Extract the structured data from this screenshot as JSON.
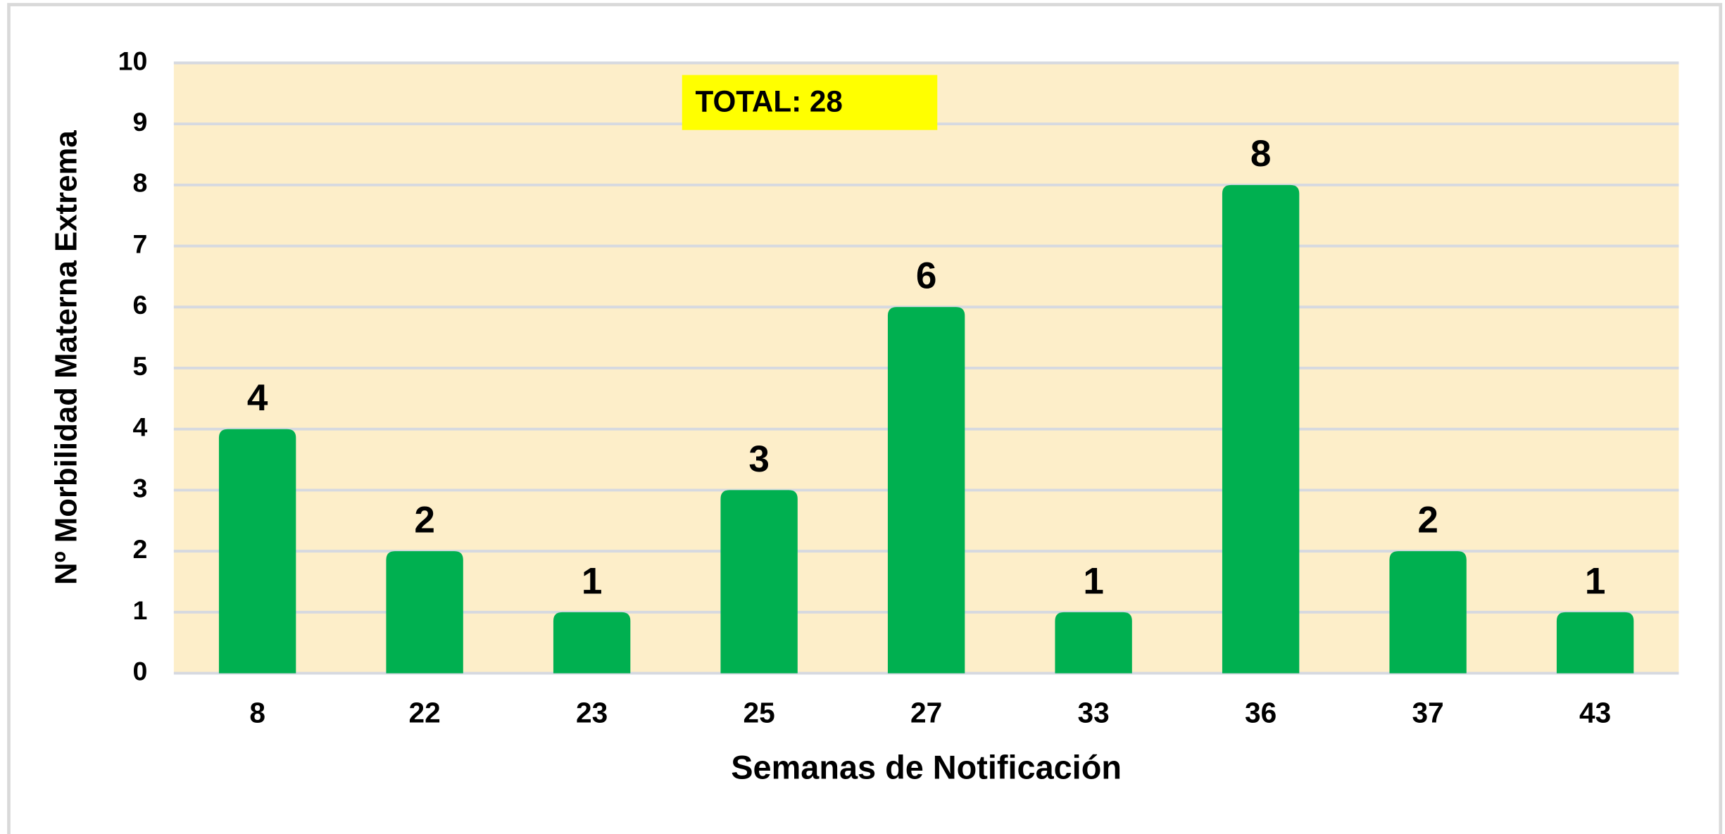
{
  "chart_data": {
    "type": "bar",
    "x_label": "Semanas de Notificación",
    "y_label": "Nº Morbilidad Materna Extrema",
    "annotation": "TOTAL: 28",
    "categories": [
      "8",
      "22",
      "23",
      "25",
      "27",
      "33",
      "36",
      "37",
      "43"
    ],
    "values": [
      4,
      2,
      1,
      3,
      6,
      1,
      8,
      2,
      1
    ],
    "color": "#00b050",
    "ylim": [
      0,
      10
    ],
    "yticks": [
      0,
      1,
      2,
      3,
      4,
      5,
      6,
      7,
      8,
      9,
      10
    ],
    "grid": true
  }
}
